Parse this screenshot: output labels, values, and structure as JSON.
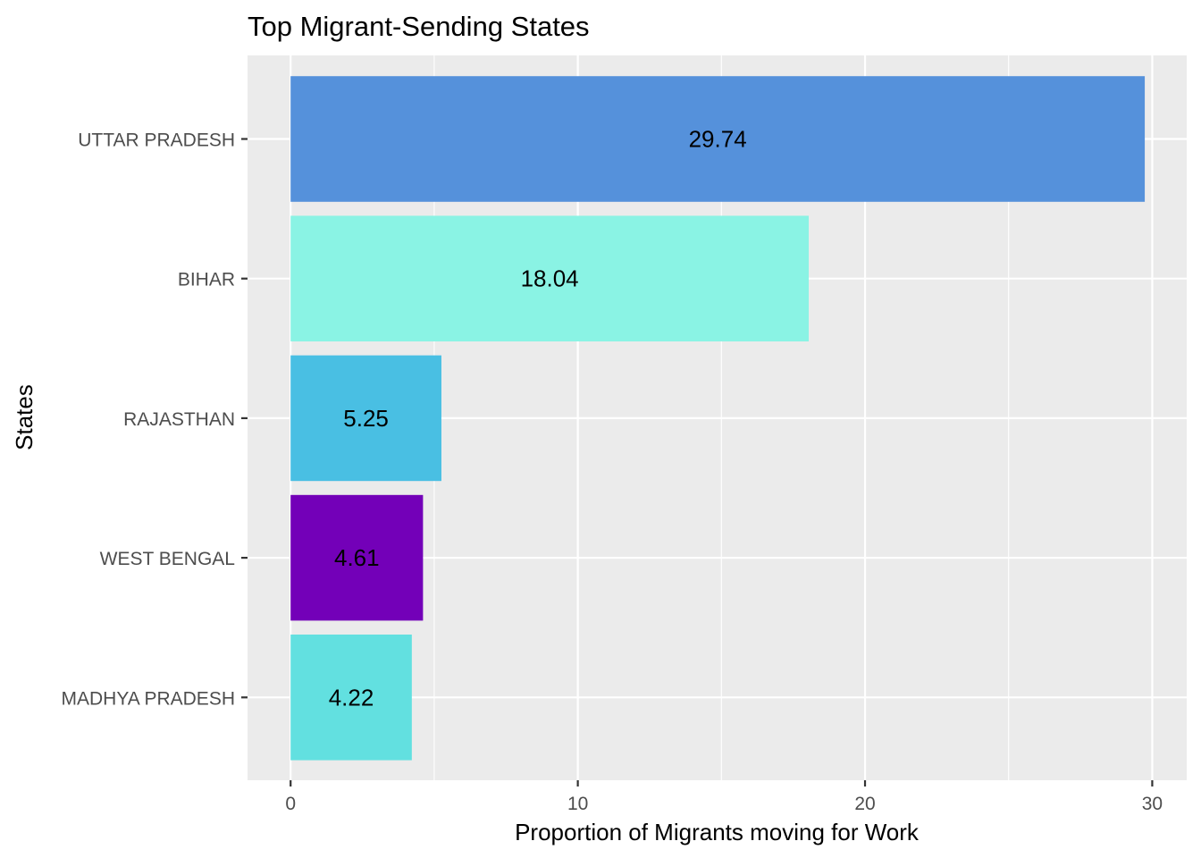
{
  "chart_data": {
    "type": "bar",
    "orientation": "horizontal",
    "title": "Top Migrant-Sending States",
    "xlabel": "Proportion of Migrants moving for Work",
    "ylabel": "States",
    "categories": [
      "UTTAR PRADESH",
      "BIHAR",
      "RAJASTHAN",
      "WEST BENGAL",
      "MADHYA PRADESH"
    ],
    "values": [
      29.74,
      18.04,
      5.25,
      4.61,
      4.22
    ],
    "value_labels": [
      "29.74",
      "18.04",
      "5.25",
      "4.61",
      "4.22"
    ],
    "colors": [
      "#5591DB",
      "#8AF3E4",
      "#49BFE3",
      "#7300B8",
      "#62E0E0"
    ],
    "xlim": [
      -1.5,
      31.2
    ],
    "x_ticks": [
      0,
      10,
      20,
      30
    ],
    "x_tick_labels": [
      "0",
      "10",
      "20",
      "30"
    ],
    "grid": true,
    "legend": "none",
    "panel_background": "#EBEBEB",
    "grid_color": "#FFFFFF"
  }
}
